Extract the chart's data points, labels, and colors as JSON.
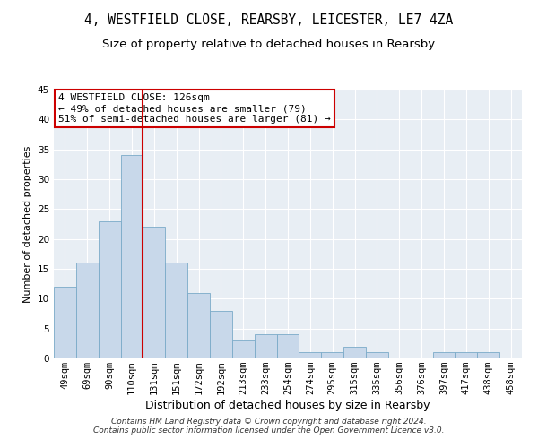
{
  "title1": "4, WESTFIELD CLOSE, REARSBY, LEICESTER, LE7 4ZA",
  "title2": "Size of property relative to detached houses in Rearsby",
  "xlabel": "Distribution of detached houses by size in Rearsby",
  "ylabel": "Number of detached properties",
  "categories": [
    "49sqm",
    "69sqm",
    "90sqm",
    "110sqm",
    "131sqm",
    "151sqm",
    "172sqm",
    "192sqm",
    "213sqm",
    "233sqm",
    "254sqm",
    "274sqm",
    "295sqm",
    "315sqm",
    "335sqm",
    "356sqm",
    "376sqm",
    "397sqm",
    "417sqm",
    "438sqm",
    "458sqm"
  ],
  "values": [
    12,
    16,
    23,
    34,
    22,
    16,
    11,
    8,
    3,
    4,
    4,
    1,
    1,
    2,
    1,
    0,
    0,
    1,
    1,
    1,
    0
  ],
  "bar_color": "#c8d8ea",
  "bar_edge_color": "#7aaac8",
  "red_line_index": 4,
  "red_line_color": "#cc0000",
  "annotation_text": "4 WESTFIELD CLOSE: 126sqm\n← 49% of detached houses are smaller (79)\n51% of semi-detached houses are larger (81) →",
  "annotation_box_color": "#ffffff",
  "annotation_box_edge_color": "#cc0000",
  "ylim": [
    0,
    45
  ],
  "yticks": [
    0,
    5,
    10,
    15,
    20,
    25,
    30,
    35,
    40,
    45
  ],
  "plot_bg_color": "#e8eef4",
  "footer1": "Contains HM Land Registry data © Crown copyright and database right 2024.",
  "footer2": "Contains public sector information licensed under the Open Government Licence v3.0.",
  "title1_fontsize": 10.5,
  "title2_fontsize": 9.5,
  "xlabel_fontsize": 9,
  "ylabel_fontsize": 8,
  "tick_fontsize": 7.5,
  "annot_fontsize": 8,
  "footer_fontsize": 6.5
}
